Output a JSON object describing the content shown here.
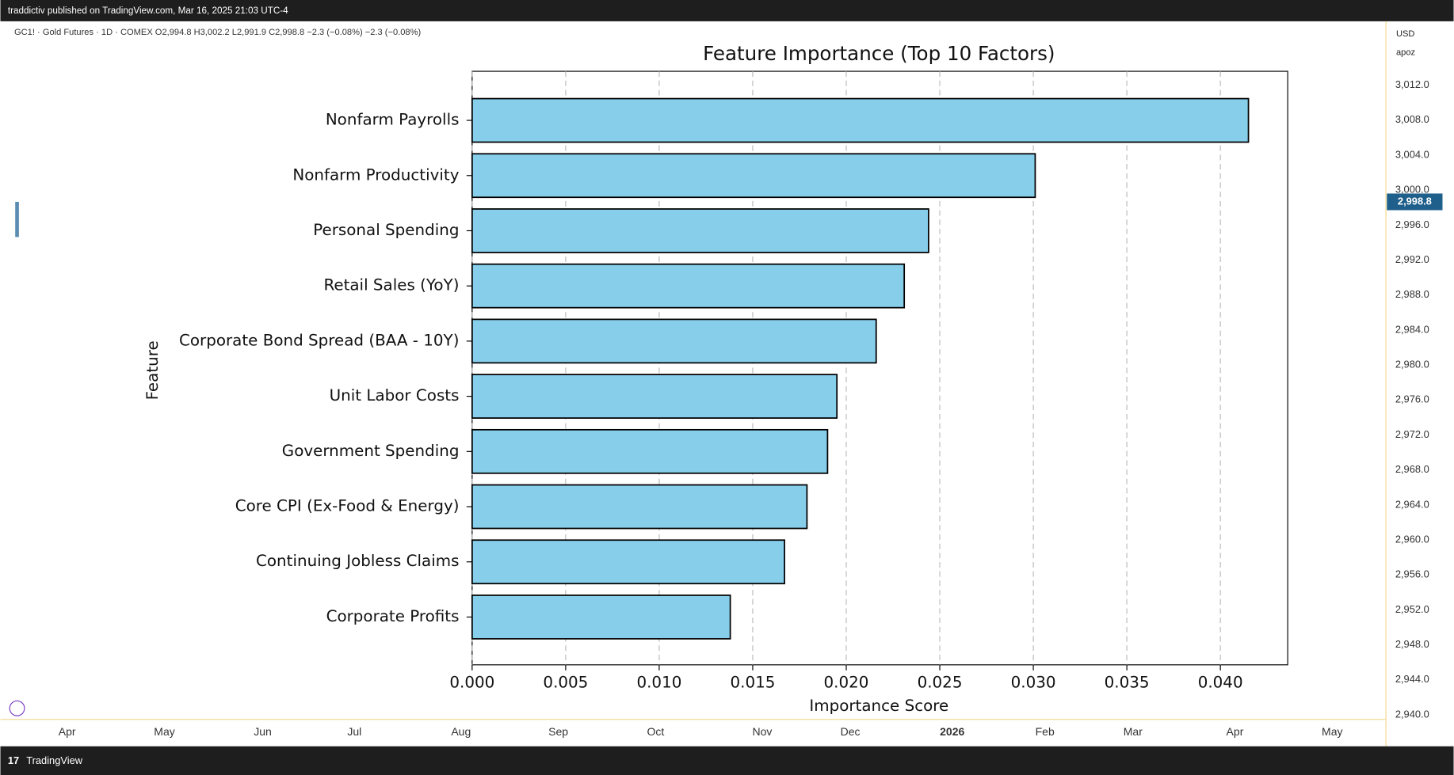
{
  "ui": {
    "header": "traddictiv published on TradingView.com, Mar 16, 2025 21:03 UTC-4",
    "symbol_line": "GC1! · Gold Futures · 1D · COMEX  O2,994.8  H3,002.2  L2,991.9  C2,998.8  −2.3 (−0.08%)  −2.3 (−0.08%)",
    "currency": "USD",
    "scale_mode": "apoz",
    "price_axis": [
      "3,012.0",
      "3,008.0",
      "3,004.0",
      "3,000.0",
      "2,996.0",
      "2,992.0",
      "2,988.0",
      "2,984.0",
      "2,980.0",
      "2,976.0",
      "2,972.0",
      "2,968.0",
      "2,964.0",
      "2,960.0",
      "2,956.0",
      "2,952.0",
      "2,948.0",
      "2,944.0",
      "2,940.0"
    ],
    "current_price": "2,998.8",
    "time_axis": [
      "Apr",
      "May",
      "Jun",
      "Jul",
      "Aug",
      "Sep",
      "Oct",
      "Nov",
      "Dec",
      "2026",
      "Feb",
      "Mar",
      "Apr",
      "May"
    ],
    "footer": "TradingView"
  },
  "chart_data": {
    "type": "barh",
    "title": "Feature Importance (Top 10 Factors)",
    "x_label": "Importance Score",
    "y_label": "Feature",
    "categories": [
      "Nonfarm Payrolls",
      "Nonfarm Productivity",
      "Personal Spending",
      "Retail Sales (YoY)",
      "Corporate Bond Spread (BAA - 10Y)",
      "Unit Labor Costs",
      "Government Spending",
      "Core CPI (Ex-Food & Energy)",
      "Continuing Jobless Claims",
      "Corporate Profits"
    ],
    "values": [
      0.0415,
      0.0301,
      0.0244,
      0.0231,
      0.0216,
      0.0195,
      0.019,
      0.0179,
      0.0167,
      0.0138
    ],
    "color": "#87ceeb",
    "edge_color": "#000000",
    "xlim": [
      0,
      0.0436
    ],
    "xticks": [
      {
        "value": 0,
        "label": "0.000"
      },
      0.005,
      {
        "value": 0.01,
        "label": "0.010"
      },
      0.015,
      {
        "value": 0.02,
        "label": "0.020"
      },
      0.025,
      {
        "value": 0.03,
        "label": "0.030"
      },
      0.035,
      {
        "value": 0.04,
        "label": "0.040"
      }
    ],
    "grid": true
  }
}
